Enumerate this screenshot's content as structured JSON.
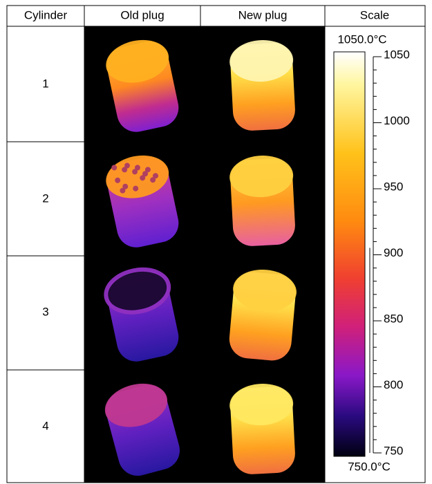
{
  "table": {
    "header": [
      "Cylinder",
      "Old plug",
      "New plug",
      "Scale"
    ],
    "rows": [
      "1",
      "2",
      "3",
      "4"
    ]
  },
  "scale": {
    "top_label": "1050.0°C",
    "bottom_label": "750.0°C",
    "ticks": [
      1050,
      1000,
      950,
      900,
      850,
      800,
      750
    ]
  }
}
